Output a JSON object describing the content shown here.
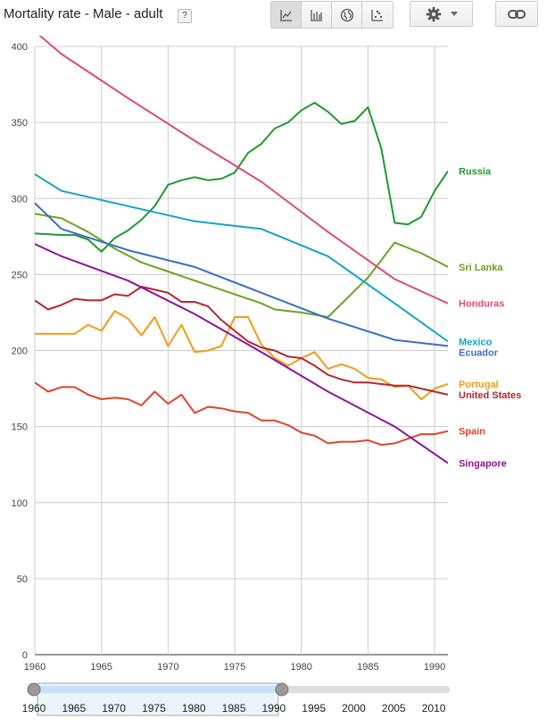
{
  "header": {
    "title": "Mortality rate - Male - adult",
    "help_label": "?"
  },
  "toolbar": {
    "buttons": [
      {
        "icon": "line-chart-icon",
        "active": true
      },
      {
        "icon": "bar-chart-icon",
        "active": false
      },
      {
        "icon": "globe-icon",
        "active": false
      },
      {
        "icon": "scatter-chart-icon",
        "active": false
      }
    ],
    "settings_icon": "gear-icon",
    "dropdown_icon": "caret-down-icon",
    "link_icon": "link-icon"
  },
  "chart_data": {
    "type": "line",
    "xlim": [
      1960,
      1991
    ],
    "ylim": [
      0,
      400
    ],
    "x_ticks": [
      1960,
      1965,
      1970,
      1975,
      1980,
      1985,
      1990
    ],
    "y_ticks": [
      0,
      50,
      100,
      150,
      200,
      250,
      300,
      350,
      400
    ],
    "grid": true,
    "legend_position": "right-inline",
    "series": [
      {
        "name": "Russia",
        "color": "#1f9a2b",
        "x": [
          1960,
          1962,
          1963,
          1964,
          1965,
          1966,
          1967,
          1968,
          1969,
          1970,
          1971,
          1972,
          1973,
          1974,
          1975,
          1976,
          1977,
          1978,
          1979,
          1980,
          1981,
          1982,
          1983,
          1984,
          1985,
          1986,
          1987,
          1988,
          1989,
          1990,
          1991
        ],
        "y": [
          277,
          276,
          276,
          273,
          265,
          274,
          279,
          286,
          295,
          309,
          312,
          314,
          312,
          313,
          317,
          330,
          336,
          346,
          350,
          358,
          363,
          357,
          349,
          351,
          360,
          333,
          284,
          283,
          288,
          305,
          318
        ]
      },
      {
        "name": "Sri Lanka",
        "color": "#6aa51e",
        "x": [
          1960,
          1962,
          1964,
          1966,
          1968,
          1970,
          1972,
          1974,
          1976,
          1977,
          1978,
          1980,
          1982,
          1985,
          1987,
          1989,
          1991
        ],
        "y": [
          290,
          287,
          278,
          267,
          258,
          252,
          246,
          240,
          234,
          231,
          227,
          225,
          222,
          248,
          271,
          264,
          255
        ]
      },
      {
        "name": "Honduras",
        "color": "#db4b7e",
        "x": [
          1960,
          1962,
          1967,
          1972,
          1977,
          1982,
          1987,
          1991
        ],
        "y": [
          410,
          395,
          366,
          338,
          311,
          278,
          247,
          231
        ]
      },
      {
        "name": "Mexico",
        "color": "#13a3c9",
        "x": [
          1960,
          1962,
          1967,
          1972,
          1977,
          1982,
          1987,
          1991
        ],
        "y": [
          316,
          305,
          295,
          285,
          280,
          262,
          231,
          206
        ]
      },
      {
        "name": "Ecuador",
        "color": "#3a6ec8",
        "x": [
          1960,
          1962,
          1967,
          1972,
          1977,
          1982,
          1987,
          1991
        ],
        "y": [
          297,
          280,
          266,
          255,
          238,
          221,
          207,
          203
        ]
      },
      {
        "name": "Portugal",
        "color": "#f49b16",
        "x": [
          1960,
          1961,
          1962,
          1963,
          1964,
          1965,
          1966,
          1967,
          1968,
          1969,
          1970,
          1971,
          1972,
          1973,
          1974,
          1975,
          1976,
          1977,
          1978,
          1979,
          1980,
          1981,
          1982,
          1983,
          1984,
          1985,
          1986,
          1987,
          1988,
          1989,
          1990,
          1991
        ],
        "y": [
          211,
          211,
          211,
          211,
          217,
          213,
          226,
          221,
          210,
          222,
          203,
          217,
          199,
          200,
          203,
          222,
          222,
          204,
          195,
          190,
          195,
          199,
          188,
          191,
          188,
          182,
          181,
          176,
          177,
          168,
          175,
          178
        ]
      },
      {
        "name": "United States",
        "color": "#b3282e",
        "x": [
          1960,
          1961,
          1962,
          1963,
          1964,
          1965,
          1966,
          1967,
          1968,
          1969,
          1970,
          1971,
          1972,
          1973,
          1974,
          1975,
          1976,
          1977,
          1978,
          1979,
          1980,
          1981,
          1982,
          1983,
          1984,
          1985,
          1986,
          1987,
          1988,
          1989,
          1990,
          1991
        ],
        "y": [
          233,
          227,
          230,
          234,
          233,
          233,
          237,
          236,
          242,
          240,
          238,
          232,
          232,
          229,
          220,
          213,
          206,
          202,
          200,
          196,
          195,
          190,
          184,
          181,
          179,
          179,
          178,
          177,
          177,
          175,
          173,
          171
        ]
      },
      {
        "name": "Spain",
        "color": "#e0442b",
        "x": [
          1960,
          1961,
          1962,
          1963,
          1964,
          1965,
          1966,
          1967,
          1968,
          1969,
          1970,
          1971,
          1972,
          1973,
          1974,
          1975,
          1976,
          1977,
          1978,
          1979,
          1980,
          1981,
          1982,
          1983,
          1984,
          1985,
          1986,
          1987,
          1988,
          1989,
          1990,
          1991
        ],
        "y": [
          179,
          173,
          176,
          176,
          171,
          168,
          169,
          168,
          164,
          173,
          165,
          171,
          159,
          163,
          162,
          160,
          159,
          154,
          154,
          151,
          146,
          144,
          139,
          140,
          140,
          141,
          138,
          139,
          142,
          145,
          145,
          147
        ]
      },
      {
        "name": "Singapore",
        "color": "#8c149c",
        "x": [
          1960,
          1962,
          1967,
          1972,
          1977,
          1982,
          1987,
          1991
        ],
        "y": [
          270,
          262,
          246,
          224,
          199,
          173,
          150,
          126
        ]
      }
    ]
  },
  "range_slider": {
    "x_ticks": [
      1960,
      1965,
      1970,
      1975,
      1980,
      1985,
      1990,
      1995,
      2000,
      2005,
      2010
    ],
    "full_range": [
      1960,
      2012
    ],
    "selected_range": [
      1960,
      1991
    ]
  }
}
